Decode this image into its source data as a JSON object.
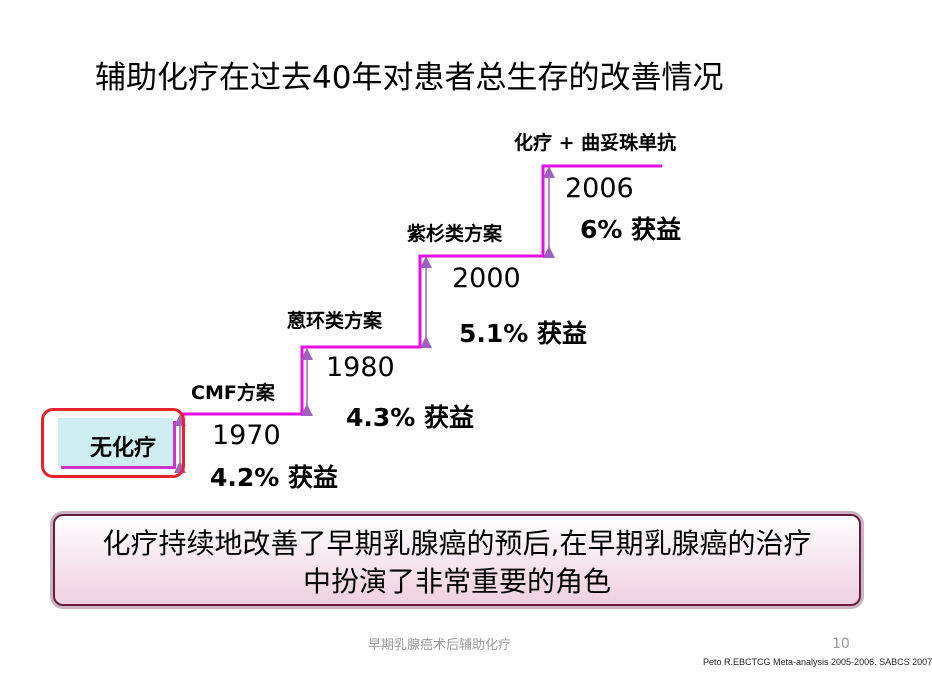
{
  "title": "辅助化疗在过去40年对患者总生存的改善情况",
  "steps": {
    "no_chemo": "无化疗",
    "cmf_label": "CMF方案",
    "anthra_label": "蒽环类方案",
    "taxane_label": "紫杉类方案",
    "trast_label": "化疗 + 曲妥珠单抗",
    "year_1970": "1970",
    "gain_1970": "4.2% 获益",
    "year_1980": "1980",
    "gain_1980": "4.3% 获益",
    "year_2000": "2000",
    "gain_2000": "5.1% 获益",
    "year_2006": "2006",
    "gain_2006": "6% 获益"
  },
  "conclusion": {
    "line1": "化疗持续地改善了早期乳腺癌的预后,在早期乳腺癌的治疗",
    "line2": "中扮演了非常重要的角色"
  },
  "footer": {
    "text": "早期乳腺癌术后辅助化疗",
    "page": "10",
    "citation": "Peto R.EBCTCG Meta-analysis 2005-2006. SABCS 2007"
  },
  "colors": {
    "step_line": "#e60fe6",
    "arrow": "#a060c0",
    "box_border": "#e8202a"
  }
}
